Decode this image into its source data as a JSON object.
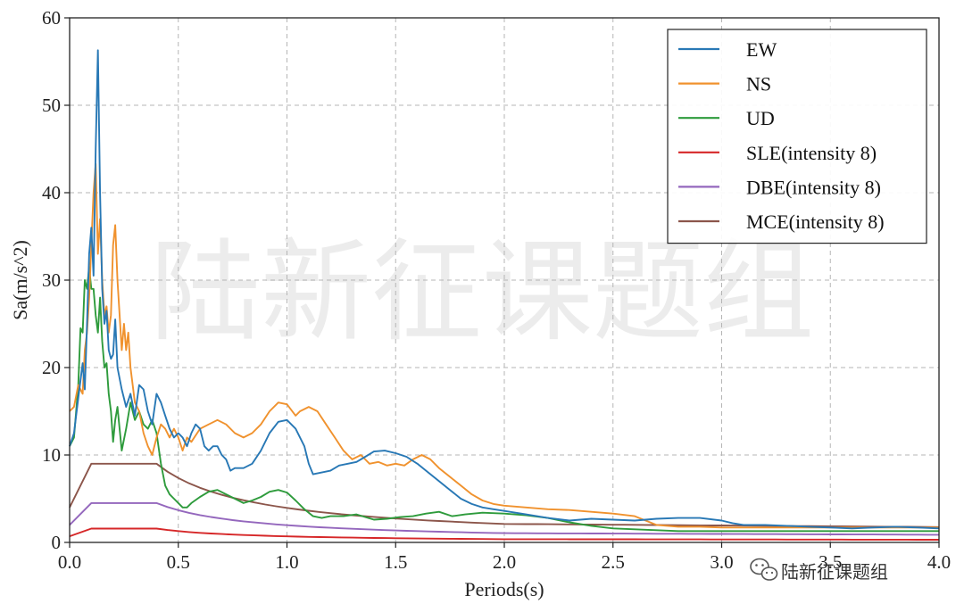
{
  "chart_data": {
    "type": "line",
    "title": "",
    "xlabel": "Periods(s)",
    "ylabel": "Sa(m/s^2)",
    "xlim": [
      0.0,
      4.0
    ],
    "ylim": [
      0,
      60
    ],
    "xticks": [
      "0.0",
      "0.5",
      "1.0",
      "1.5",
      "2.0",
      "2.5",
      "3.0",
      "3.5",
      "4.0"
    ],
    "yticks": [
      "0",
      "10",
      "20",
      "30",
      "40",
      "50",
      "60"
    ],
    "grid": true,
    "legend_position": "top-right",
    "series": [
      {
        "name": "EW",
        "color": "#2878b5",
        "points": [
          [
            0.0,
            11.0
          ],
          [
            0.02,
            12.5
          ],
          [
            0.04,
            16.5
          ],
          [
            0.06,
            20.5
          ],
          [
            0.07,
            17.5
          ],
          [
            0.08,
            25.0
          ],
          [
            0.09,
            33.0
          ],
          [
            0.1,
            36.0
          ],
          [
            0.11,
            30.5
          ],
          [
            0.12,
            45.0
          ],
          [
            0.13,
            56.3
          ],
          [
            0.14,
            40.0
          ],
          [
            0.15,
            29.0
          ],
          [
            0.16,
            25.0
          ],
          [
            0.17,
            26.5
          ],
          [
            0.18,
            22.0
          ],
          [
            0.19,
            21.0
          ],
          [
            0.2,
            21.5
          ],
          [
            0.21,
            25.5
          ],
          [
            0.22,
            20.0
          ],
          [
            0.24,
            17.5
          ],
          [
            0.26,
            15.5
          ],
          [
            0.28,
            17.0
          ],
          [
            0.3,
            14.5
          ],
          [
            0.32,
            18.0
          ],
          [
            0.34,
            17.5
          ],
          [
            0.36,
            15.0
          ],
          [
            0.38,
            13.5
          ],
          [
            0.4,
            17.0
          ],
          [
            0.42,
            16.0
          ],
          [
            0.44,
            14.5
          ],
          [
            0.46,
            13.0
          ],
          [
            0.48,
            12.0
          ],
          [
            0.5,
            12.5
          ],
          [
            0.52,
            12.0
          ],
          [
            0.54,
            11.0
          ],
          [
            0.56,
            12.5
          ],
          [
            0.58,
            13.5
          ],
          [
            0.6,
            13.0
          ],
          [
            0.62,
            11.0
          ],
          [
            0.64,
            10.5
          ],
          [
            0.66,
            11.0
          ],
          [
            0.68,
            11.0
          ],
          [
            0.7,
            10.0
          ],
          [
            0.72,
            9.5
          ],
          [
            0.74,
            8.2
          ],
          [
            0.76,
            8.5
          ],
          [
            0.8,
            8.5
          ],
          [
            0.84,
            9.0
          ],
          [
            0.88,
            10.5
          ],
          [
            0.92,
            12.5
          ],
          [
            0.96,
            13.8
          ],
          [
            1.0,
            14.0
          ],
          [
            1.04,
            13.0
          ],
          [
            1.08,
            11.0
          ],
          [
            1.1,
            9.0
          ],
          [
            1.12,
            7.8
          ],
          [
            1.16,
            8.0
          ],
          [
            1.2,
            8.2
          ],
          [
            1.24,
            8.8
          ],
          [
            1.28,
            9.0
          ],
          [
            1.32,
            9.2
          ],
          [
            1.36,
            9.8
          ],
          [
            1.4,
            10.4
          ],
          [
            1.45,
            10.5
          ],
          [
            1.5,
            10.2
          ],
          [
            1.55,
            9.8
          ],
          [
            1.6,
            9.0
          ],
          [
            1.65,
            8.0
          ],
          [
            1.7,
            7.0
          ],
          [
            1.75,
            6.0
          ],
          [
            1.8,
            5.0
          ],
          [
            1.85,
            4.4
          ],
          [
            1.9,
            4.0
          ],
          [
            1.95,
            3.8
          ],
          [
            2.0,
            3.6
          ],
          [
            2.1,
            3.2
          ],
          [
            2.2,
            2.8
          ],
          [
            2.3,
            2.5
          ],
          [
            2.4,
            2.7
          ],
          [
            2.5,
            2.6
          ],
          [
            2.6,
            2.5
          ],
          [
            2.7,
            2.7
          ],
          [
            2.8,
            2.8
          ],
          [
            2.9,
            2.8
          ],
          [
            3.0,
            2.5
          ],
          [
            3.05,
            2.2
          ],
          [
            3.1,
            2.0
          ],
          [
            3.2,
            2.0
          ],
          [
            3.3,
            1.9
          ],
          [
            3.4,
            1.8
          ],
          [
            3.5,
            1.7
          ],
          [
            3.6,
            1.6
          ],
          [
            3.7,
            1.7
          ],
          [
            3.8,
            1.8
          ],
          [
            3.9,
            1.7
          ],
          [
            4.0,
            1.6
          ]
        ]
      },
      {
        "name": "NS",
        "color": "#f0922e",
        "points": [
          [
            0.0,
            15.0
          ],
          [
            0.02,
            15.5
          ],
          [
            0.04,
            18.0
          ],
          [
            0.06,
            17.0
          ],
          [
            0.07,
            22.0
          ],
          [
            0.08,
            24.0
          ],
          [
            0.09,
            28.0
          ],
          [
            0.1,
            34.0
          ],
          [
            0.11,
            40.0
          ],
          [
            0.12,
            43.3
          ],
          [
            0.13,
            33.0
          ],
          [
            0.14,
            37.0
          ],
          [
            0.15,
            30.0
          ],
          [
            0.16,
            26.0
          ],
          [
            0.17,
            27.0
          ],
          [
            0.18,
            24.0
          ],
          [
            0.19,
            26.0
          ],
          [
            0.2,
            34.0
          ],
          [
            0.21,
            36.3
          ],
          [
            0.22,
            30.0
          ],
          [
            0.23,
            26.0
          ],
          [
            0.24,
            22.0
          ],
          [
            0.25,
            25.0
          ],
          [
            0.26,
            22.0
          ],
          [
            0.27,
            24.0
          ],
          [
            0.28,
            20.0
          ],
          [
            0.3,
            16.0
          ],
          [
            0.32,
            15.0
          ],
          [
            0.34,
            12.5
          ],
          [
            0.36,
            11.0
          ],
          [
            0.38,
            10.0
          ],
          [
            0.4,
            12.0
          ],
          [
            0.42,
            13.5
          ],
          [
            0.44,
            13.0
          ],
          [
            0.46,
            12.0
          ],
          [
            0.48,
            13.0
          ],
          [
            0.5,
            12.0
          ],
          [
            0.52,
            10.5
          ],
          [
            0.54,
            12.0
          ],
          [
            0.56,
            11.5
          ],
          [
            0.6,
            13.0
          ],
          [
            0.64,
            13.5
          ],
          [
            0.68,
            14.0
          ],
          [
            0.72,
            13.5
          ],
          [
            0.76,
            12.5
          ],
          [
            0.8,
            12.0
          ],
          [
            0.84,
            12.5
          ],
          [
            0.88,
            13.5
          ],
          [
            0.92,
            15.0
          ],
          [
            0.96,
            16.0
          ],
          [
            1.0,
            15.8
          ],
          [
            1.04,
            14.5
          ],
          [
            1.06,
            15.0
          ],
          [
            1.1,
            15.5
          ],
          [
            1.14,
            15.0
          ],
          [
            1.18,
            13.5
          ],
          [
            1.22,
            12.0
          ],
          [
            1.26,
            10.5
          ],
          [
            1.3,
            9.5
          ],
          [
            1.34,
            10.0
          ],
          [
            1.38,
            9.0
          ],
          [
            1.42,
            9.2
          ],
          [
            1.46,
            8.8
          ],
          [
            1.5,
            9.0
          ],
          [
            1.54,
            8.8
          ],
          [
            1.58,
            9.5
          ],
          [
            1.62,
            10.0
          ],
          [
            1.66,
            9.5
          ],
          [
            1.7,
            8.5
          ],
          [
            1.75,
            7.5
          ],
          [
            1.8,
            6.5
          ],
          [
            1.85,
            5.5
          ],
          [
            1.9,
            4.8
          ],
          [
            1.95,
            4.4
          ],
          [
            2.0,
            4.2
          ],
          [
            2.1,
            4.0
          ],
          [
            2.2,
            3.8
          ],
          [
            2.3,
            3.7
          ],
          [
            2.4,
            3.5
          ],
          [
            2.5,
            3.3
          ],
          [
            2.6,
            3.0
          ],
          [
            2.65,
            2.5
          ],
          [
            2.7,
            2.0
          ],
          [
            2.8,
            1.8
          ],
          [
            2.9,
            1.8
          ],
          [
            3.0,
            1.7
          ],
          [
            3.2,
            1.7
          ],
          [
            3.4,
            1.7
          ],
          [
            3.6,
            1.7
          ],
          [
            3.8,
            1.7
          ],
          [
            4.0,
            1.7
          ]
        ]
      },
      {
        "name": "UD",
        "color": "#2e9b3c",
        "points": [
          [
            0.0,
            11.0
          ],
          [
            0.02,
            12.0
          ],
          [
            0.04,
            18.0
          ],
          [
            0.05,
            24.5
          ],
          [
            0.06,
            24.0
          ],
          [
            0.07,
            30.0
          ],
          [
            0.08,
            29.0
          ],
          [
            0.09,
            31.5
          ],
          [
            0.1,
            29.0
          ],
          [
            0.11,
            29.0
          ],
          [
            0.12,
            26.0
          ],
          [
            0.13,
            24.0
          ],
          [
            0.14,
            28.0
          ],
          [
            0.15,
            23.0
          ],
          [
            0.16,
            20.0
          ],
          [
            0.17,
            20.5
          ],
          [
            0.18,
            17.0
          ],
          [
            0.19,
            15.0
          ],
          [
            0.2,
            11.5
          ],
          [
            0.21,
            14.0
          ],
          [
            0.22,
            15.5
          ],
          [
            0.23,
            13.0
          ],
          [
            0.24,
            10.5
          ],
          [
            0.26,
            13.0
          ],
          [
            0.28,
            16.0
          ],
          [
            0.3,
            14.0
          ],
          [
            0.32,
            15.0
          ],
          [
            0.34,
            13.5
          ],
          [
            0.36,
            13.0
          ],
          [
            0.38,
            14.0
          ],
          [
            0.4,
            12.5
          ],
          [
            0.42,
            9.0
          ],
          [
            0.44,
            6.5
          ],
          [
            0.46,
            5.5
          ],
          [
            0.48,
            5.0
          ],
          [
            0.5,
            4.5
          ],
          [
            0.52,
            4.0
          ],
          [
            0.54,
            4.0
          ],
          [
            0.56,
            4.5
          ],
          [
            0.6,
            5.2
          ],
          [
            0.64,
            5.8
          ],
          [
            0.68,
            6.0
          ],
          [
            0.72,
            5.5
          ],
          [
            0.76,
            5.0
          ],
          [
            0.8,
            4.5
          ],
          [
            0.84,
            4.8
          ],
          [
            0.88,
            5.2
          ],
          [
            0.92,
            5.8
          ],
          [
            0.96,
            6.0
          ],
          [
            1.0,
            5.7
          ],
          [
            1.04,
            4.8
          ],
          [
            1.08,
            3.8
          ],
          [
            1.12,
            3.0
          ],
          [
            1.16,
            2.8
          ],
          [
            1.2,
            3.0
          ],
          [
            1.26,
            3.0
          ],
          [
            1.32,
            3.2
          ],
          [
            1.4,
            2.6
          ],
          [
            1.46,
            2.7
          ],
          [
            1.52,
            2.9
          ],
          [
            1.58,
            3.0
          ],
          [
            1.64,
            3.3
          ],
          [
            1.7,
            3.5
          ],
          [
            1.76,
            3.0
          ],
          [
            1.82,
            3.2
          ],
          [
            1.9,
            3.4
          ],
          [
            2.0,
            3.3
          ],
          [
            2.1,
            3.1
          ],
          [
            2.2,
            2.8
          ],
          [
            2.3,
            2.3
          ],
          [
            2.4,
            1.9
          ],
          [
            2.5,
            1.6
          ],
          [
            2.6,
            1.5
          ],
          [
            2.7,
            1.4
          ],
          [
            2.8,
            1.3
          ],
          [
            2.9,
            1.3
          ],
          [
            3.0,
            1.3
          ],
          [
            3.2,
            1.3
          ],
          [
            3.4,
            1.3
          ],
          [
            3.6,
            1.3
          ],
          [
            3.8,
            1.3
          ],
          [
            4.0,
            1.3
          ]
        ]
      },
      {
        "name": "SLE(intensity 8)",
        "color": "#d62728",
        "curve": {
          "t0": 0.0,
          "a0": 0.7,
          "t1": 0.1,
          "plateau": 1.58,
          "tg": 0.4
        }
      },
      {
        "name": "DBE(intensity 8)",
        "color": "#9467bd",
        "curve": {
          "t0": 0.0,
          "a0": 2.0,
          "t1": 0.1,
          "plateau": 4.5,
          "tg": 0.4
        }
      },
      {
        "name": "MCE(intensity 8)",
        "color": "#8c564b",
        "curve": {
          "t0": 0.0,
          "a0": 4.0,
          "t1": 0.1,
          "plateau": 9.0,
          "tg": 0.4
        }
      }
    ]
  },
  "watermark": "陆新征课题组",
  "credit": {
    "icon": "wechat-icon",
    "text": "陆新征课题组"
  }
}
